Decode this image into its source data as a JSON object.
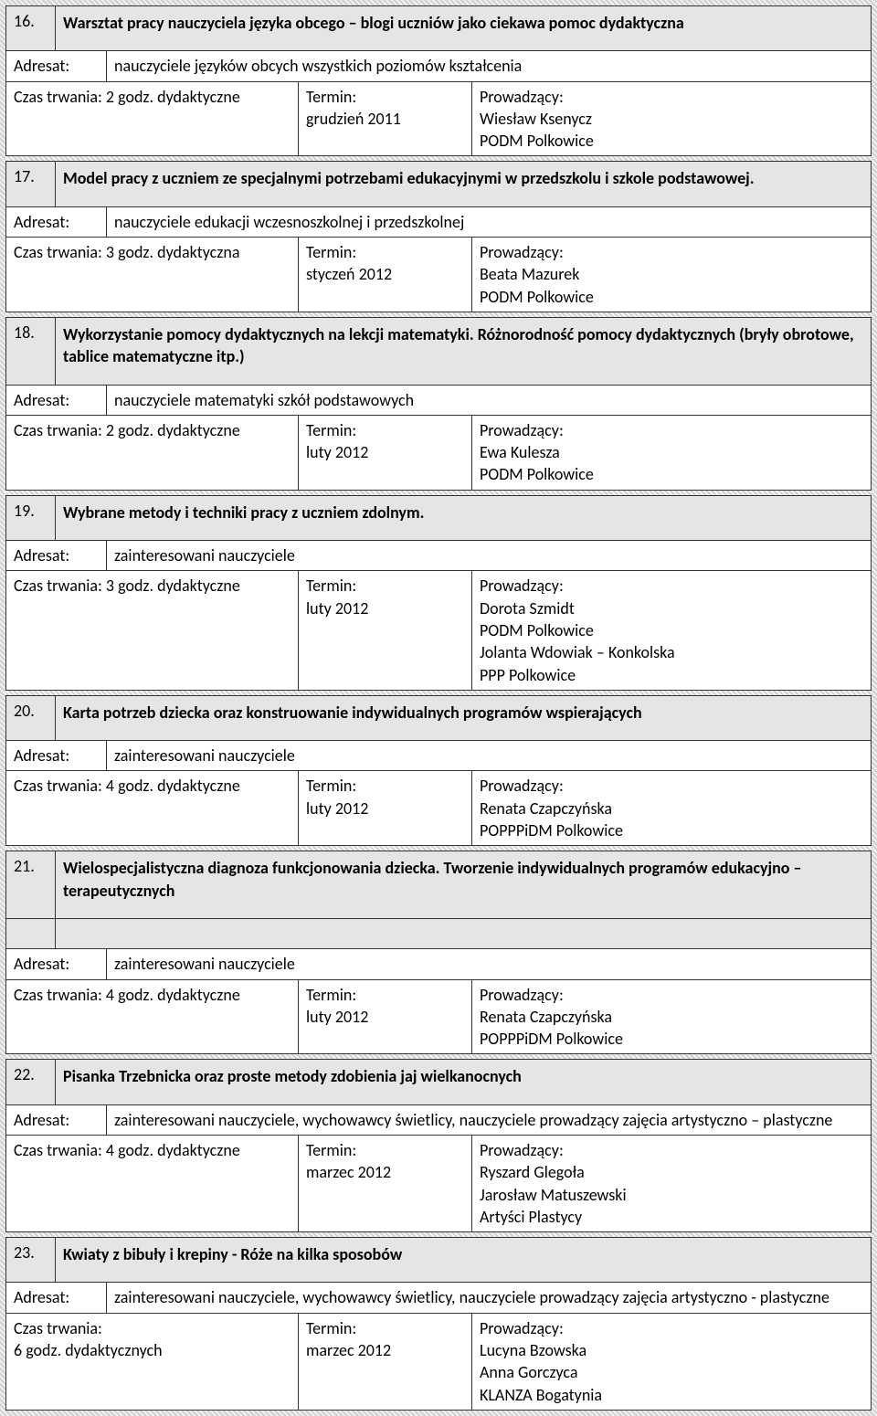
{
  "labels": {
    "adresat": "Adresat:",
    "czas": "Czas trwania:",
    "termin": "Termin:",
    "prowadzacy": "Prowadzący:"
  },
  "colors": {
    "header_bg": "#e5e5e5",
    "border": "#333333",
    "text": "#000000",
    "hatch_light": "#f5f5f5",
    "hatch_dark": "#d0d0d0"
  },
  "typography": {
    "font_family": "Calibri, Arial, sans-serif",
    "font_size_pt": 13,
    "line_height": 1.35
  },
  "items": [
    {
      "num": "16.",
      "title": "Warsztat pracy nauczyciela języka obcego – blogi uczniów jako ciekawa pomoc dydaktyczna",
      "adresat": "nauczyciele języków obcych wszystkich poziomów kształcenia",
      "czas_full": "Czas trwania: 2 godz. dydaktyczne",
      "termin": "grudzień 2011",
      "prowadzacy": "Wiesław Ksenycz\nPODM Polkowice"
    },
    {
      "num": "17.",
      "title": "Model pracy z uczniem ze specjalnymi potrzebami edukacyjnymi w przedszkolu i szkole podstawowej.",
      "adresat": "nauczyciele edukacji wczesnoszkolnej i przedszkolnej",
      "czas_full": "Czas trwania: 3 godz. dydaktyczna",
      "termin": "styczeń 2012",
      "prowadzacy": "Beata Mazurek\nPODM Polkowice"
    },
    {
      "num": "18.",
      "title": "Wykorzystanie pomocy dydaktycznych na lekcji matematyki. Różnorodność pomocy dydaktycznych (bryły obrotowe, tablice matematyczne itp.)",
      "adresat": "nauczyciele matematyki szkół podstawowych",
      "czas_full": "Czas trwania: 2 godz. dydaktyczne",
      "termin": "luty 2012",
      "prowadzacy": "Ewa Kulesza\nPODM Polkowice"
    },
    {
      "num": "19.",
      "title": "Wybrane metody i techniki pracy z uczniem zdolnym.",
      "adresat": "zainteresowani nauczyciele",
      "czas_full": "Czas trwania: 3 godz. dydaktyczne",
      "termin": "luty 2012",
      "prowadzacy": "Dorota Szmidt\nPODM Polkowice\n Jolanta Wdowiak – Konkolska\nPPP Polkowice"
    },
    {
      "num": "20.",
      "title": "Karta potrzeb dziecka oraz konstruowanie indywidualnych programów wspierających",
      "adresat": "zainteresowani nauczyciele",
      "czas_full": "Czas trwania: 4 godz. dydaktyczne",
      "termin": "luty 2012",
      "prowadzacy": "Renata Czapczyńska\nPOPPPiDM Polkowice"
    },
    {
      "num": "21.",
      "title": "Wielospecjalistyczna diagnoza funkcjonowania dziecka. Tworzenie indywidualnych programów edukacyjno – terapeutycznych",
      "adresat": "zainteresowani nauczyciele",
      "czas_full": "Czas trwania: 4 godz. dydaktyczne",
      "termin": "luty 2012",
      "prowadzacy": "Renata Czapczyńska\nPOPPPiDM Polkowice",
      "extra_title_row": true
    },
    {
      "num": "22.",
      "title": "Pisanka Trzebnicka oraz proste metody zdobienia jaj wielkanocnych",
      "adresat": "zainteresowani nauczyciele, wychowawcy świetlicy, nauczyciele prowadzący zajęcia artystyczno – plastyczne",
      "czas_full": "Czas trwania: 4 godz. dydaktyczne",
      "termin": "marzec 2012",
      "prowadzacy": "Ryszard Glegoła\n Jarosław Matuszewski\nArtyści Plastycy"
    },
    {
      "num": "23.",
      "title": "Kwiaty z bibuły i krepiny - Róże na kilka sposobów",
      "adresat": "zainteresowani nauczyciele, wychowawcy świetlicy, nauczyciele prowadzący zajęcia artystyczno - plastyczne",
      "czas_full": "Czas trwania:\n6 godz. dydaktycznych",
      "termin": "marzec 2012",
      "prowadzacy": "Lucyna Bzowska\n Anna Gorczyca\nKLANZA Bogatynia"
    }
  ]
}
